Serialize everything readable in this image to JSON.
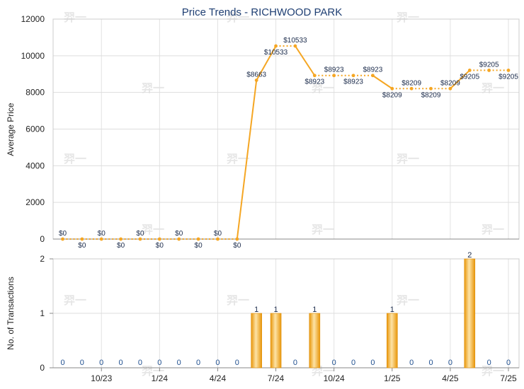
{
  "chart_data": [
    {
      "type": "line",
      "title": "Price Trends - RICHWOOD PARK",
      "ylabel": "Average Price",
      "ylim": [
        0,
        12000
      ],
      "yticks": [
        0,
        2000,
        4000,
        6000,
        8000,
        10000,
        12000
      ],
      "grid": true,
      "x": [
        "2023-08",
        "2023-09",
        "2023-10",
        "2023-11",
        "2023-12",
        "2024-01",
        "2024-02",
        "2024-03",
        "2024-04",
        "2024-05",
        "2024-06",
        "2024-07",
        "2024-08",
        "2024-09",
        "2024-10",
        "2024-11",
        "2024-12",
        "2025-01",
        "2025-02",
        "2025-03",
        "2025-04",
        "2025-05",
        "2025-06",
        "2025-07"
      ],
      "values": [
        0,
        0,
        0,
        0,
        0,
        0,
        0,
        0,
        0,
        0,
        8663,
        10533,
        10533,
        8923,
        8923,
        8923,
        8923,
        8209,
        8209,
        8209,
        8209,
        9205,
        9205,
        9205
      ],
      "labels": [
        "$0",
        "$0",
        "$0",
        "$0",
        "$0",
        "$0",
        "$0",
        "$0",
        "$0",
        "$0",
        "$8663",
        "$10533",
        "$10533",
        "$8923",
        "$8923",
        "$8923",
        "$8923",
        "$8209",
        "$8209",
        "$8209",
        "$8209",
        "$9205",
        "$9205",
        "$9205"
      ],
      "color": "#f5a623"
    },
    {
      "type": "bar",
      "ylabel": "No. of Transactions",
      "ylim": [
        0,
        2
      ],
      "yticks": [
        0,
        1,
        2
      ],
      "grid": true,
      "x": [
        "2023-08",
        "2023-09",
        "2023-10",
        "2023-11",
        "2023-12",
        "2024-01",
        "2024-02",
        "2024-03",
        "2024-04",
        "2024-05",
        "2024-06",
        "2024-07",
        "2024-08",
        "2024-09",
        "2024-10",
        "2024-11",
        "2024-12",
        "2025-01",
        "2025-02",
        "2025-03",
        "2025-04",
        "2025-05",
        "2025-06",
        "2025-07"
      ],
      "values": [
        0,
        0,
        0,
        0,
        0,
        0,
        0,
        0,
        0,
        0,
        1,
        1,
        0,
        1,
        0,
        0,
        0,
        1,
        0,
        0,
        0,
        2,
        0,
        0
      ],
      "xtick_labels": [
        "10/23",
        "1/24",
        "4/24",
        "7/24",
        "10/24",
        "1/25",
        "4/25",
        "7/25"
      ],
      "xtick_index": [
        2,
        5,
        8,
        11,
        14,
        17,
        20,
        23
      ],
      "color": "#f5a623"
    }
  ],
  "watermark": "羿一"
}
